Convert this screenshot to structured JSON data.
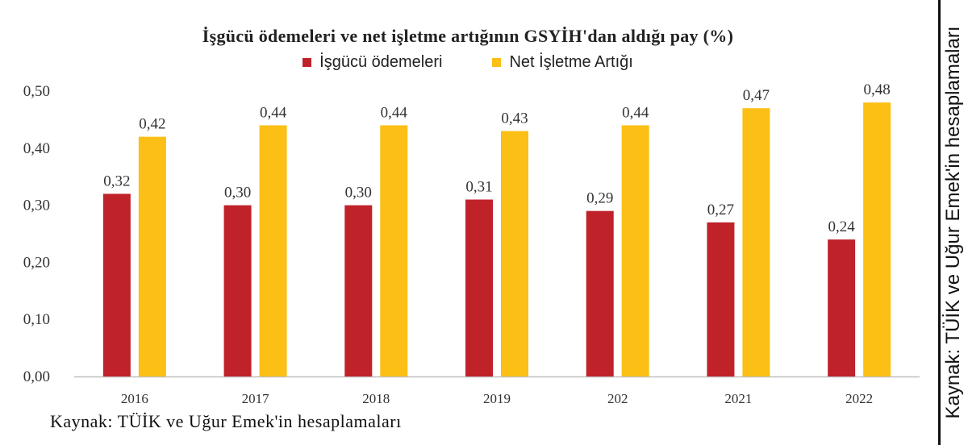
{
  "chart_data": {
    "type": "bar",
    "title": "İşgücü ödemeleri ve net işletme artığının GSYİH'dan aldığı pay (%)",
    "categories": [
      "2016",
      "2017",
      "2018",
      "2019",
      "202",
      "2021",
      "2022"
    ],
    "series": [
      {
        "name": "İşgücü ödemeleri",
        "color": "#c0222a",
        "values": [
          0.32,
          0.3,
          0.3,
          0.31,
          0.29,
          0.27,
          0.24
        ],
        "labels": [
          "0,32",
          "0,30",
          "0,30",
          "0,31",
          "0,29",
          "0,27",
          "0,24"
        ]
      },
      {
        "name": "Net İşletme Artığı",
        "color": "#fbbf15",
        "values": [
          0.42,
          0.44,
          0.44,
          0.43,
          0.44,
          0.47,
          0.48
        ],
        "labels": [
          "0,42",
          "0,44",
          "0,44",
          "0,43",
          "0,44",
          "0,47",
          "0,48"
        ]
      }
    ],
    "ylim": [
      0,
      0.5
    ],
    "yticks": [
      0,
      0.1,
      0.2,
      0.3,
      0.4,
      0.5
    ],
    "ytick_labels": [
      "0,00",
      "0,10",
      "0,20",
      "0,30",
      "0,40",
      "0,50"
    ],
    "xlabel": "",
    "ylabel": "",
    "grid": false,
    "legend_position": "top-center"
  },
  "source_bottom": "Kaynak: TÜİK ve Uğur Emek'in hesaplamaları",
  "source_side": "Kaynak: TÜİK ve Uğur Emek'in hesaplamaları"
}
